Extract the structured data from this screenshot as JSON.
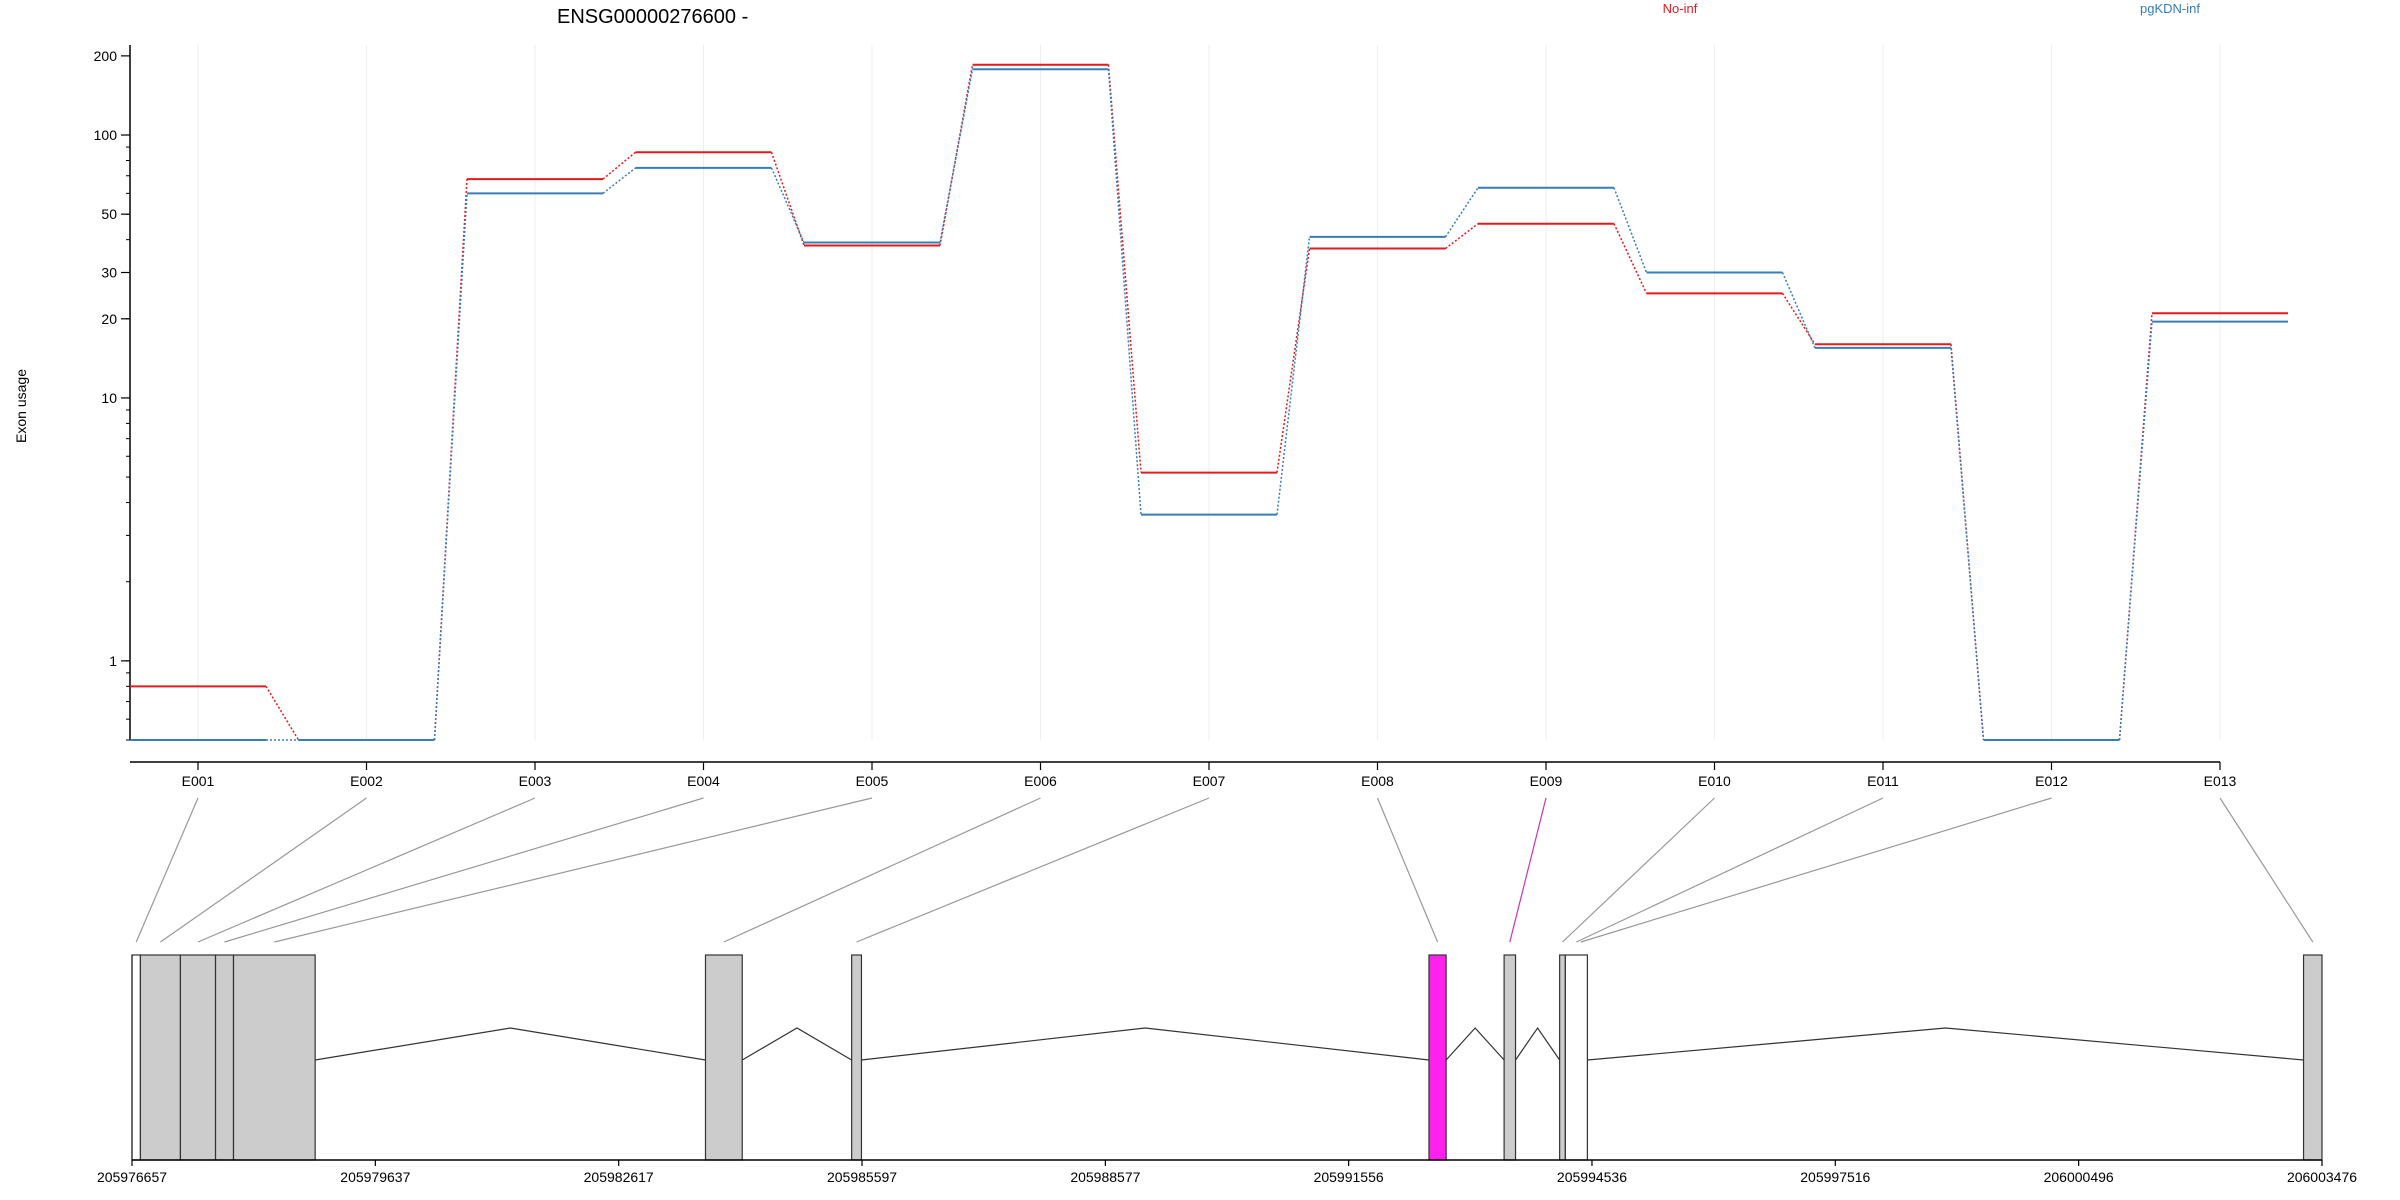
{
  "chart_data": [
    {
      "type": "line",
      "title": "ENSG00000276600 -",
      "ylabel": "Exon usage",
      "xlabel": "",
      "yscale": "log",
      "ylim": [
        0.5,
        220
      ],
      "yticks": [
        1,
        10,
        20,
        30,
        50,
        100,
        200
      ],
      "grid": true,
      "legend": "top-right",
      "categories": [
        "E001",
        "E002",
        "E003",
        "E004",
        "E005",
        "E006",
        "E007",
        "E008",
        "E009",
        "E010",
        "E011",
        "E012",
        "E013"
      ],
      "series": [
        {
          "name": "No-inf",
          "color": "#e41a1c",
          "values": [
            0.8,
            0.5,
            68,
            86,
            38,
            185,
            5.2,
            37,
            46,
            25,
            16,
            0.5,
            21
          ]
        },
        {
          "name": "pgKDN-inf",
          "color": "#377eb8",
          "values": [
            0.5,
            0.5,
            60,
            75,
            39,
            178,
            3.6,
            41,
            63,
            30,
            15.5,
            0.5,
            19.5
          ]
        }
      ]
    },
    {
      "type": "gene-model",
      "xlim": [
        205976657,
        206003476
      ],
      "xticks": [
        205976657,
        205979637,
        205982617,
        205985597,
        205988577,
        205991556,
        205994536,
        205997516,
        206000496,
        206003476
      ],
      "exons": [
        {
          "id": "E001",
          "start": 205976657,
          "end": 205976760,
          "fill": "#ffffff"
        },
        {
          "id": "E002",
          "start": 205976760,
          "end": 205977250,
          "fill": "#cccccc"
        },
        {
          "id": "E003",
          "start": 205977250,
          "end": 205977680,
          "fill": "#cccccc"
        },
        {
          "id": "E004",
          "start": 205977680,
          "end": 205977900,
          "fill": "#cccccc"
        },
        {
          "id": "E005",
          "start": 205977900,
          "end": 205978900,
          "fill": "#cccccc"
        },
        {
          "id": "E006",
          "start": 205983680,
          "end": 205984130,
          "fill": "#cccccc"
        },
        {
          "id": "E007",
          "start": 205985470,
          "end": 205985590,
          "fill": "#cccccc"
        },
        {
          "id": "E008",
          "start": 205992540,
          "end": 205992750,
          "fill": "#ff22ee"
        },
        {
          "id": "E009",
          "start": 205993460,
          "end": 205993600,
          "fill": "#cccccc"
        },
        {
          "id": "E010",
          "start": 205994140,
          "end": 205994210,
          "fill": "#cccccc"
        },
        {
          "id": "E011",
          "start": 205994210,
          "end": 205994480,
          "fill": "#ffffff"
        },
        {
          "id": "E013",
          "start": 206003250,
          "end": 206003476,
          "fill": "#cccccc"
        }
      ],
      "highlight": {
        "exon": "E009",
        "color": "#cc33aa"
      }
    }
  ]
}
